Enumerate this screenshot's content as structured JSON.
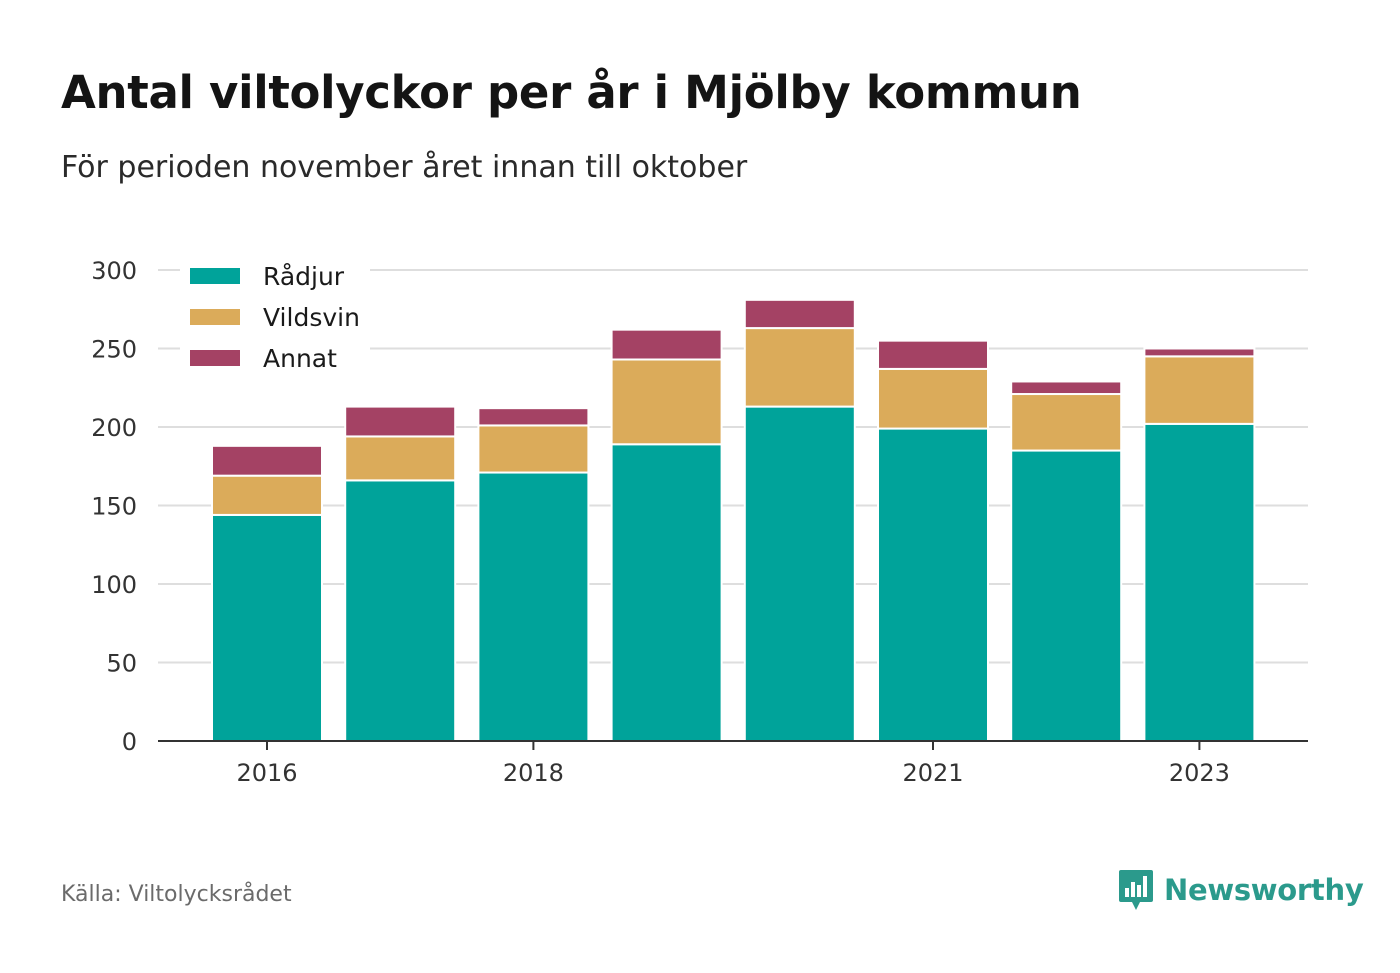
{
  "header": {
    "title": "Antal viltolyckor per år i Mjölby kommun",
    "subtitle": "För perioden november året innan till oktober"
  },
  "footer": {
    "source": "Källa: Viltolycksrådet",
    "brand": "Newsworthy",
    "brand_icon": "newsworthy-logo-icon"
  },
  "colors": {
    "radjur": "#00a39a",
    "vildsvin": "#dbab5a",
    "annat": "#a44264",
    "grid": "#dedede",
    "axis": "#333333",
    "brand": "#2b9a8c"
  },
  "chart_data": {
    "type": "bar",
    "stacked": true,
    "categories": [
      "2016",
      "2017",
      "2018",
      "2019",
      "2020",
      "2021",
      "2022",
      "2023"
    ],
    "x_tick_labels": [
      "2016",
      "2018",
      "2021",
      "2023"
    ],
    "series": [
      {
        "name": "Rådjur",
        "color": "#00a39a",
        "values": [
          144,
          166,
          171,
          189,
          213,
          199,
          185,
          202
        ]
      },
      {
        "name": "Vildsvin",
        "color": "#dbab5a",
        "values": [
          25,
          28,
          30,
          54,
          50,
          38,
          36,
          43
        ]
      },
      {
        "name": "Annat",
        "color": "#a44264",
        "values": [
          19,
          19,
          11,
          19,
          18,
          18,
          8,
          5
        ]
      }
    ],
    "ylim": [
      0,
      300
    ],
    "y_ticks": [
      0,
      50,
      100,
      150,
      200,
      250,
      300
    ],
    "xlabel": "",
    "ylabel": "",
    "grid": true,
    "legend_position": "top-left"
  }
}
